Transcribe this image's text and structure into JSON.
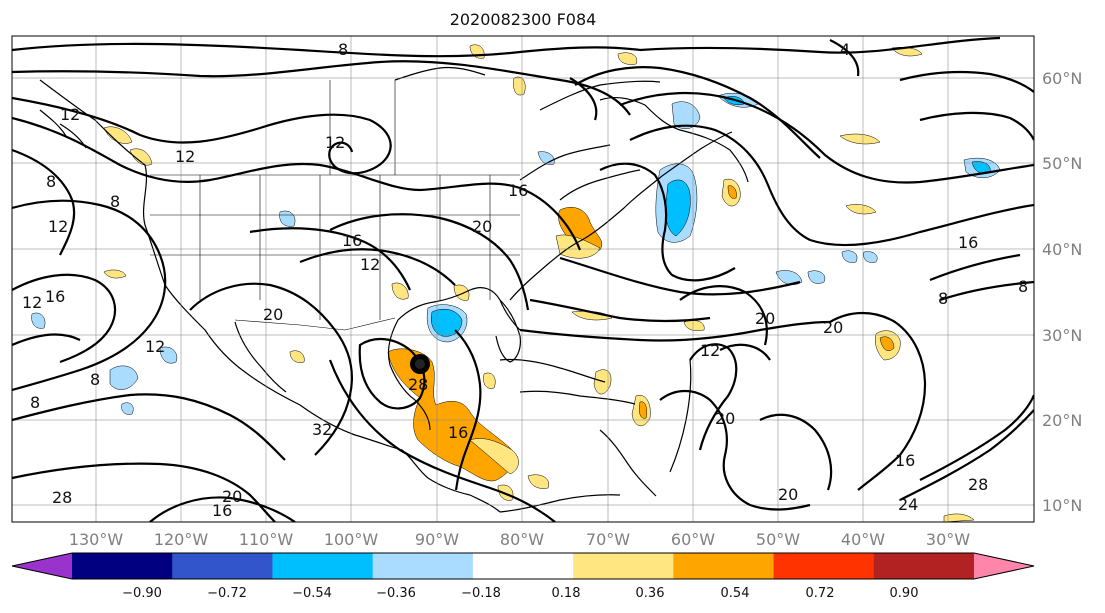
{
  "figure": {
    "title": "2020082300 F084",
    "lon_labels": [
      "130°W",
      "120°W",
      "110°W",
      "100°W",
      "90°W",
      "80°W",
      "70°W",
      "60°W",
      "50°W",
      "40°W",
      "30°W"
    ],
    "lat_labels": [
      "60°N",
      "50°N",
      "40°N",
      "30°N",
      "20°N",
      "10°N"
    ]
  },
  "colorbar": {
    "ticks": [
      "−0.90",
      "−0.72",
      "−0.54",
      "−0.36",
      "−0.18",
      "0.18",
      "0.36",
      "0.54",
      "0.72",
      "0.90"
    ],
    "colors": [
      "#9933cc",
      "#000080",
      "#3355cc",
      "#00bfff",
      "#aadcff",
      "#ffffff",
      "#ffe680",
      "#ffa500",
      "#ff3300",
      "#b22222",
      "#ff85aa"
    ]
  },
  "contour_labels": [
    "8",
    "12",
    "12",
    "8",
    "8",
    "12",
    "16",
    "8",
    "12",
    "16",
    "20",
    "12",
    "16",
    "20",
    "12",
    "8",
    "16",
    "28",
    "20",
    "12",
    "20",
    "32",
    "20",
    "28",
    "20",
    "16",
    "20",
    "16",
    "24",
    "28",
    "8",
    "16",
    "8",
    "12",
    "4"
  ],
  "storm": {
    "name": "storm-marker"
  }
}
